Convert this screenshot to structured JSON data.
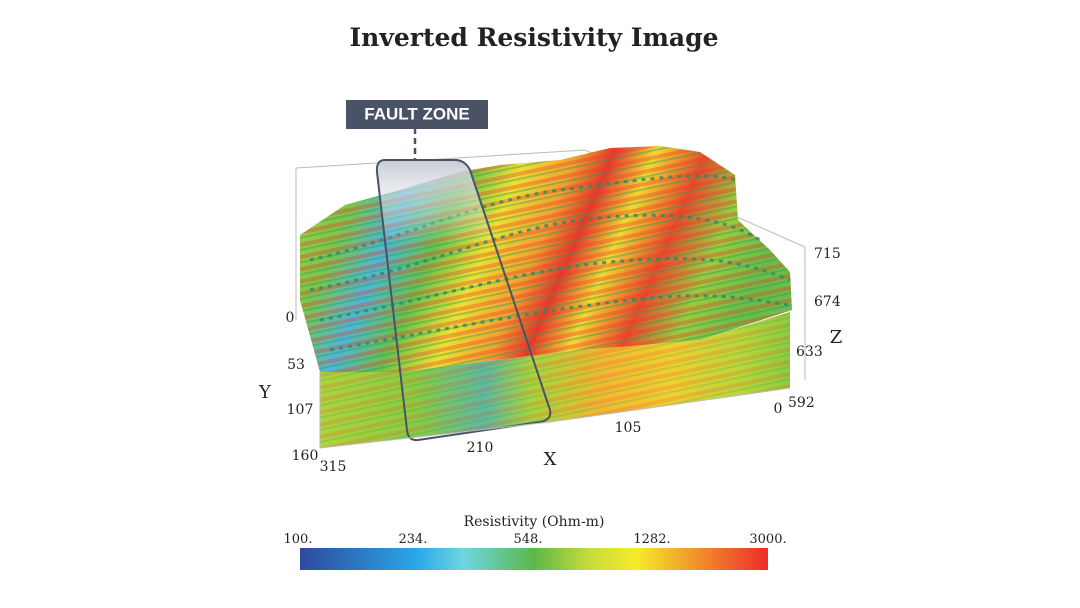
{
  "title": "Inverted Resistivity Image",
  "fault_zone_label": "FAULT ZONE",
  "axes": {
    "y": {
      "label": "Y",
      "ticks": [
        "0",
        "53",
        "107",
        "160"
      ]
    },
    "x": {
      "label": "X",
      "ticks": [
        "315",
        "210",
        "105",
        "0"
      ]
    },
    "z": {
      "label": "Z",
      "ticks": [
        "715",
        "674",
        "633",
        "592"
      ]
    }
  },
  "colorbar": {
    "title": "Resistivity (Ohm-m)",
    "ticks": [
      "100.",
      "234.",
      "548.",
      "1282.",
      "3000."
    ]
  }
}
